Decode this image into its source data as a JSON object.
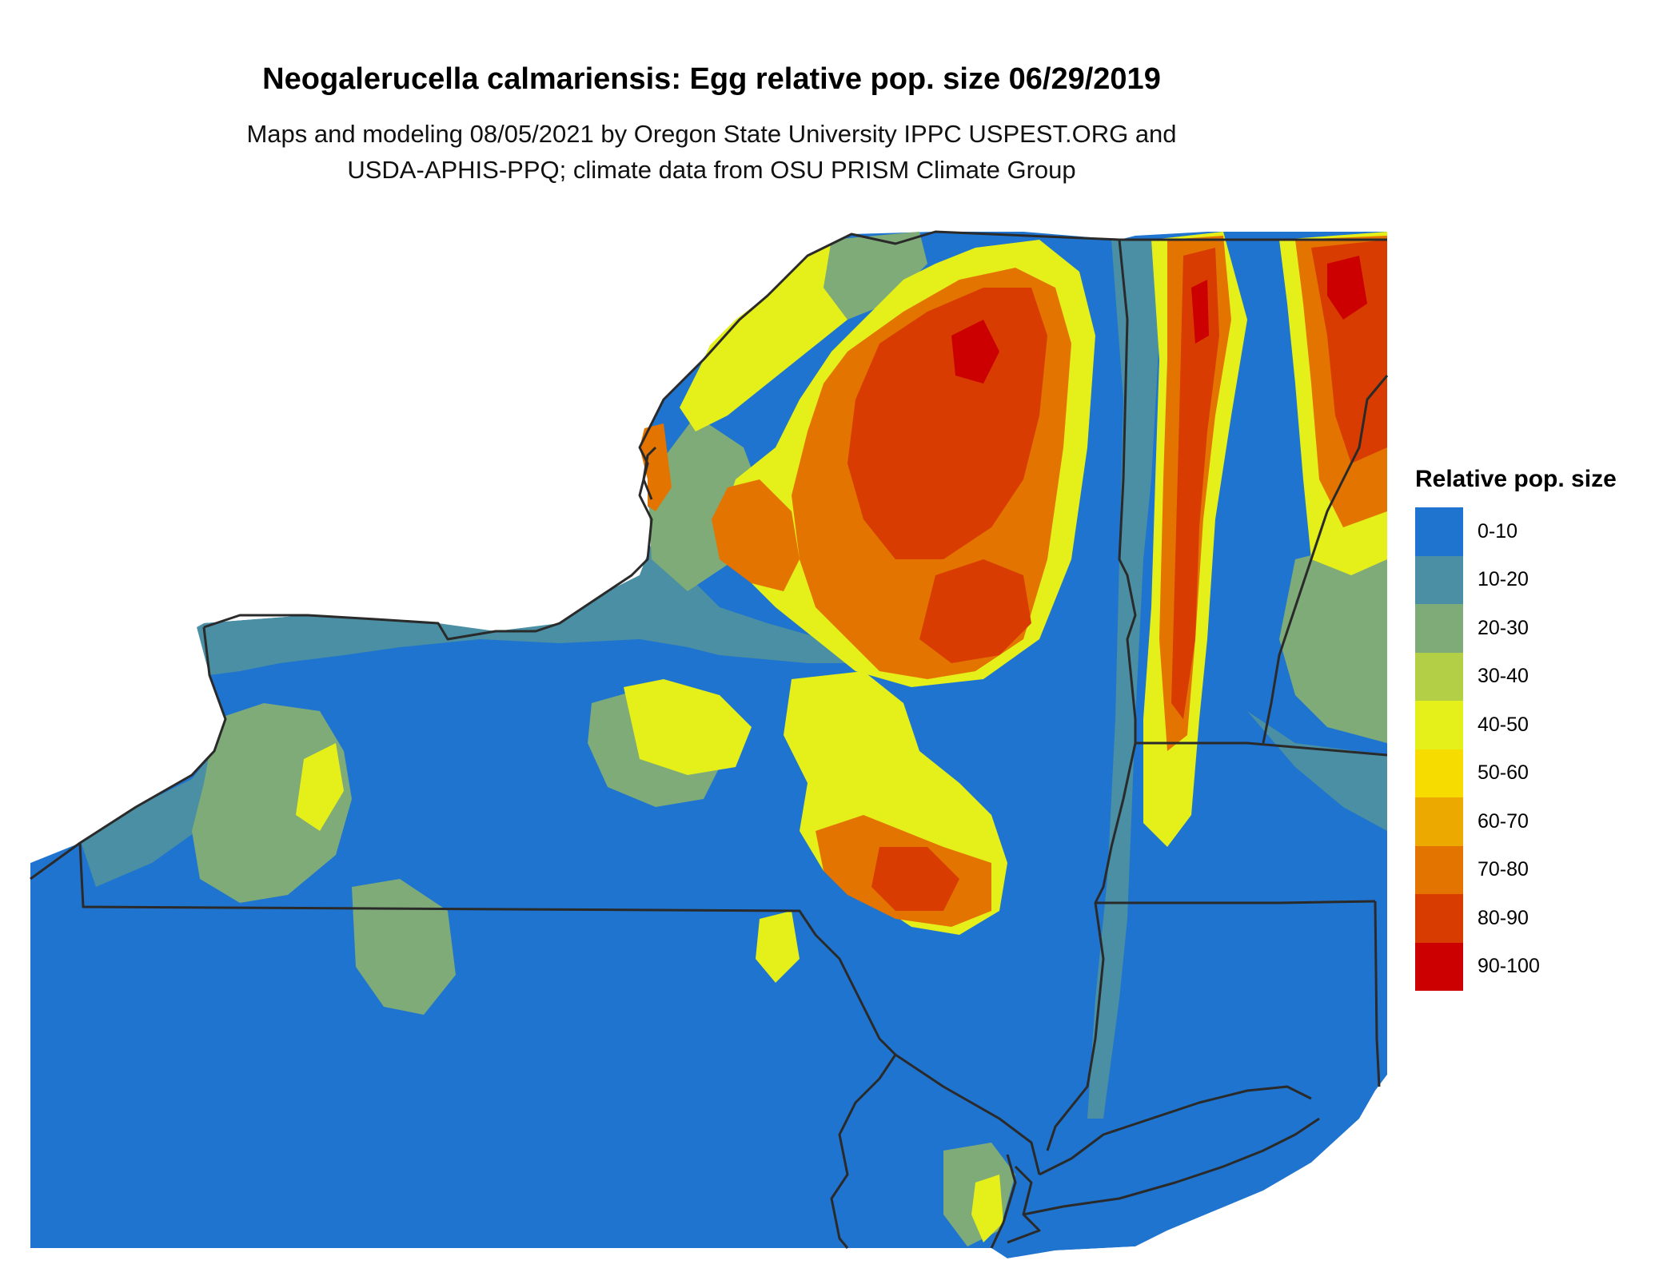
{
  "header": {
    "title": "Neogalerucella calmariensis: Egg relative pop. size 06/29/2019",
    "subtitle_line1": "Maps and modeling 08/05/2021 by Oregon State University IPPC USPEST.ORG and",
    "subtitle_line2": "USDA-APHIS-PPQ; climate data from OSU PRISM Climate Group"
  },
  "legend": {
    "title": "Relative pop. size",
    "classes": [
      {
        "label": "0-10",
        "color": "#1f74cf"
      },
      {
        "label": "10-20",
        "color": "#4a8fa3"
      },
      {
        "label": "20-30",
        "color": "#7fab78"
      },
      {
        "label": "30-40",
        "color": "#b2cf45"
      },
      {
        "label": "40-50",
        "color": "#e5ef19"
      },
      {
        "label": "50-60",
        "color": "#f7dc00"
      },
      {
        "label": "60-70",
        "color": "#eca900"
      },
      {
        "label": "70-80",
        "color": "#e37400"
      },
      {
        "label": "80-90",
        "color": "#d83c00"
      },
      {
        "label": "90-100",
        "color": "#cc0000"
      }
    ]
  },
  "map": {
    "region": "New York State and surrounding areas",
    "background_color": "#1f74cf",
    "border_color": "#2a2a2a"
  }
}
